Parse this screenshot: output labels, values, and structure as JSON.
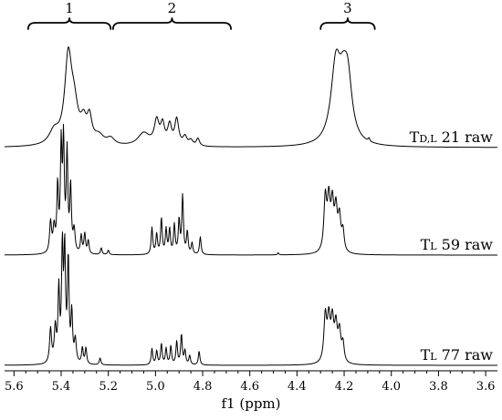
{
  "chart_data": {
    "type": "line",
    "xlabel": "f1 (ppm)",
    "xlim": [
      5.64,
      3.55
    ],
    "x_reversed": true,
    "x_ticks": [
      5.6,
      5.4,
      5.2,
      5.0,
      4.8,
      4.6,
      4.4,
      4.2,
      4.0,
      3.8,
      3.6
    ],
    "x_tick_labels": [
      "5.6",
      "5.4",
      "5.2",
      "5.0",
      "4.8",
      "4.6",
      "4.4",
      "4.2",
      "4.0",
      "3.8",
      "3.6"
    ],
    "grid": false,
    "regions": [
      {
        "label": "1",
        "from": 5.54,
        "to": 5.19
      },
      {
        "label": "2",
        "from": 5.18,
        "to": 4.68
      },
      {
        "label": "3",
        "from": 4.3,
        "to": 4.07
      }
    ],
    "series": [
      {
        "name": "TD,L 21 raw",
        "label_main": "T",
        "label_sub": "D,L",
        "label_rest": " 21 raw",
        "peaks": [
          [
            5.43,
            0.12,
            0.025
          ],
          [
            5.37,
            0.78,
            0.018
          ],
          [
            5.345,
            0.3,
            0.02
          ],
          [
            5.305,
            0.18,
            0.015
          ],
          [
            5.28,
            0.22,
            0.012
          ],
          [
            5.24,
            0.08,
            0.025
          ],
          [
            5.19,
            0.06,
            0.02
          ],
          [
            5.05,
            0.12,
            0.03
          ],
          [
            4.995,
            0.22,
            0.012
          ],
          [
            4.97,
            0.18,
            0.01
          ],
          [
            4.94,
            0.18,
            0.01
          ],
          [
            4.91,
            0.24,
            0.01
          ],
          [
            4.875,
            0.08,
            0.01
          ],
          [
            4.85,
            0.05,
            0.01
          ],
          [
            4.82,
            0.07,
            0.008
          ],
          [
            4.235,
            0.72,
            0.025
          ],
          [
            4.185,
            0.55,
            0.022
          ],
          [
            4.205,
            0.3,
            0.02
          ],
          [
            4.095,
            0.03,
            0.004
          ]
        ]
      },
      {
        "name": "TL 59 raw",
        "label_main": "T",
        "label_sub": "L",
        "label_rest": " 59 raw",
        "peaks": [
          [
            5.445,
            0.28,
            0.005
          ],
          [
            5.43,
            0.22,
            0.005
          ],
          [
            5.415,
            0.58,
            0.004
          ],
          [
            5.4,
            0.92,
            0.004
          ],
          [
            5.39,
            0.96,
            0.004
          ],
          [
            5.375,
            0.88,
            0.004
          ],
          [
            5.36,
            0.58,
            0.004
          ],
          [
            5.345,
            0.2,
            0.005
          ],
          [
            5.315,
            0.16,
            0.004
          ],
          [
            5.3,
            0.18,
            0.004
          ],
          [
            5.285,
            0.12,
            0.004
          ],
          [
            5.23,
            0.06,
            0.004
          ],
          [
            5.2,
            0.04,
            0.004
          ],
          [
            5.015,
            0.24,
            0.004
          ],
          [
            4.995,
            0.18,
            0.004
          ],
          [
            4.975,
            0.32,
            0.004
          ],
          [
            4.955,
            0.22,
            0.004
          ],
          [
            4.94,
            0.22,
            0.004
          ],
          [
            4.92,
            0.26,
            0.004
          ],
          [
            4.9,
            0.3,
            0.004
          ],
          [
            4.885,
            0.52,
            0.004
          ],
          [
            4.865,
            0.2,
            0.004
          ],
          [
            4.845,
            0.1,
            0.004
          ],
          [
            4.81,
            0.16,
            0.004
          ],
          [
            4.28,
            0.48,
            0.007
          ],
          [
            4.265,
            0.44,
            0.007
          ],
          [
            4.25,
            0.4,
            0.007
          ],
          [
            4.235,
            0.36,
            0.007
          ],
          [
            4.22,
            0.3,
            0.007
          ],
          [
            4.205,
            0.18,
            0.006
          ],
          [
            4.48,
            0.02,
            0.003
          ]
        ]
      },
      {
        "name": "TL 77 raw",
        "label_main": "T",
        "label_sub": "L",
        "label_rest": " 77 raw",
        "peaks": [
          [
            5.445,
            0.3,
            0.005
          ],
          [
            5.425,
            0.3,
            0.005
          ],
          [
            5.41,
            0.62,
            0.004
          ],
          [
            5.395,
            0.97,
            0.004
          ],
          [
            5.385,
            0.94,
            0.004
          ],
          [
            5.37,
            0.88,
            0.004
          ],
          [
            5.355,
            0.42,
            0.004
          ],
          [
            5.34,
            0.2,
            0.005
          ],
          [
            5.31,
            0.14,
            0.004
          ],
          [
            5.295,
            0.14,
            0.004
          ],
          [
            5.235,
            0.06,
            0.004
          ],
          [
            5.015,
            0.14,
            0.004
          ],
          [
            4.995,
            0.12,
            0.004
          ],
          [
            4.975,
            0.18,
            0.004
          ],
          [
            4.955,
            0.14,
            0.004
          ],
          [
            4.935,
            0.16,
            0.004
          ],
          [
            4.91,
            0.2,
            0.004
          ],
          [
            4.89,
            0.26,
            0.004
          ],
          [
            4.875,
            0.12,
            0.004
          ],
          [
            4.855,
            0.08,
            0.004
          ],
          [
            4.815,
            0.12,
            0.004
          ],
          [
            4.28,
            0.4,
            0.007
          ],
          [
            4.265,
            0.36,
            0.007
          ],
          [
            4.25,
            0.34,
            0.007
          ],
          [
            4.235,
            0.3,
            0.007
          ],
          [
            4.22,
            0.26,
            0.007
          ],
          [
            4.205,
            0.16,
            0.006
          ]
        ]
      }
    ]
  }
}
